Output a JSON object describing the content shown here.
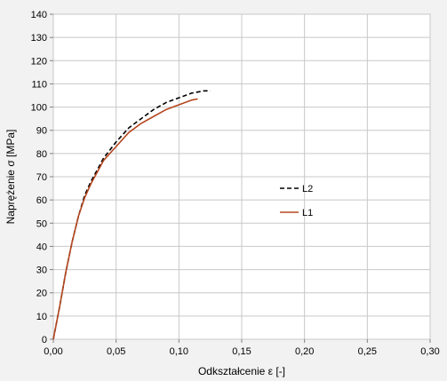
{
  "chart_data": {
    "type": "line",
    "xlabel": "Odkształcenie ε [-]",
    "ylabel": "Naprężenie σ [MPa]",
    "xlim": [
      0,
      0.3
    ],
    "ylim": [
      0,
      140
    ],
    "x_ticks": [
      "0,00",
      "0,05",
      "0,10",
      "0,15",
      "0,20",
      "0,25",
      "0,30"
    ],
    "y_ticks": [
      "0",
      "10",
      "20",
      "30",
      "40",
      "50",
      "60",
      "70",
      "80",
      "90",
      "100",
      "110",
      "120",
      "130",
      "140"
    ],
    "grid": true,
    "legend_position": "right-center",
    "series": [
      {
        "name": "L2",
        "style": "dashed",
        "color": "#000000",
        "x": [
          0,
          0.005,
          0.01,
          0.015,
          0.02,
          0.025,
          0.03,
          0.035,
          0.04,
          0.05,
          0.06,
          0.07,
          0.08,
          0.09,
          0.1,
          0.11,
          0.12,
          0.125
        ],
        "y": [
          0,
          14,
          29,
          42,
          53,
          62,
          68,
          73,
          78,
          85,
          91,
          95,
          99,
          102,
          104,
          106,
          107,
          107
        ]
      },
      {
        "name": "L1",
        "style": "solid",
        "color": "#b5471f",
        "x": [
          0,
          0.005,
          0.01,
          0.015,
          0.02,
          0.025,
          0.03,
          0.035,
          0.04,
          0.05,
          0.06,
          0.07,
          0.08,
          0.09,
          0.1,
          0.11,
          0.115
        ],
        "y": [
          0,
          14,
          29,
          42,
          53,
          61,
          67,
          72,
          77,
          83,
          89,
          93,
          96,
          99,
          101,
          103,
          103.5
        ]
      }
    ]
  }
}
